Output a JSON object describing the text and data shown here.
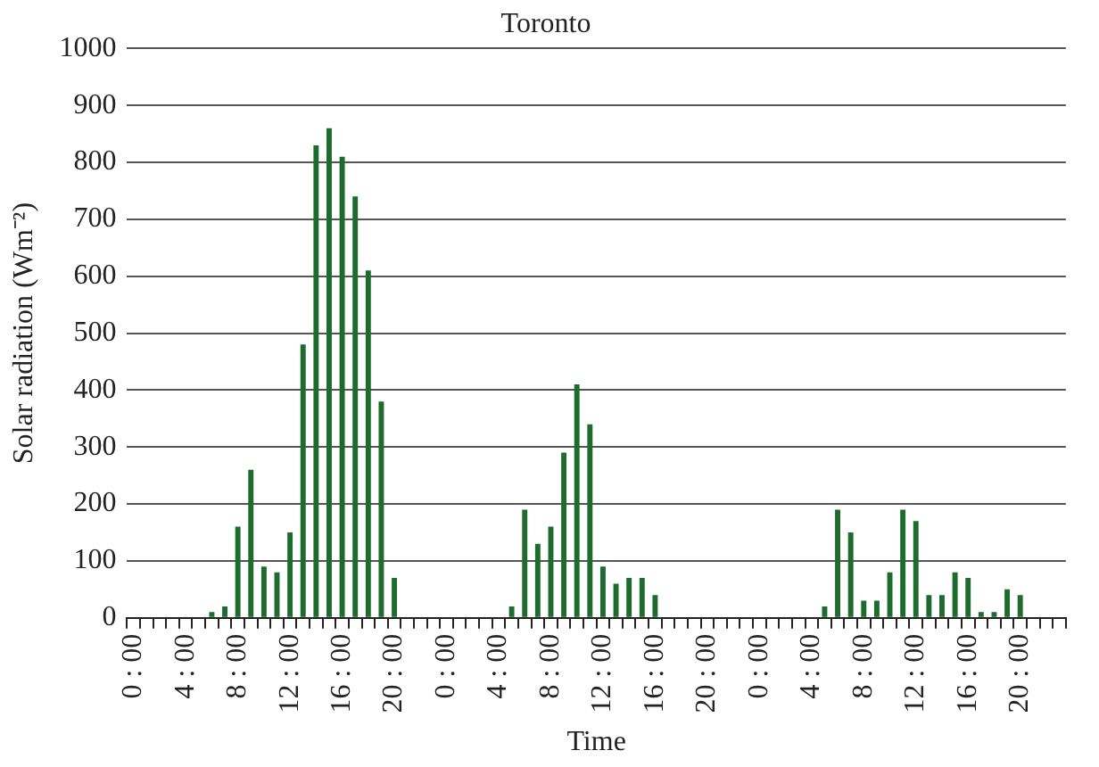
{
  "chart_data": {
    "type": "bar",
    "title": "Toronto",
    "xlabel": "Time",
    "ylabel": "Solar radiation (Wm⁻²)",
    "categories": [
      "0 : 00",
      null,
      null,
      null,
      "4 : 00",
      null,
      null,
      null,
      "8 : 00",
      null,
      null,
      null,
      "12 : 00",
      null,
      null,
      null,
      "16 : 00",
      null,
      null,
      null,
      "20 : 00",
      null,
      null,
      null,
      "0 : 00",
      null,
      null,
      null,
      "4 : 00",
      null,
      null,
      null,
      "8 : 00",
      null,
      null,
      null,
      "12 : 00",
      null,
      null,
      null,
      "16 : 00",
      null,
      null,
      null,
      "20 : 00",
      null,
      null,
      null,
      "0 : 00",
      null,
      null,
      null,
      "4 : 00",
      null,
      null,
      null,
      "8 : 00",
      null,
      null,
      null,
      "12 : 00",
      null,
      null,
      null,
      "16 : 00",
      null,
      null,
      null,
      "20 : 00",
      null,
      null,
      null
    ],
    "values": [
      0,
      0,
      0,
      0,
      0,
      0,
      10,
      20,
      160,
      260,
      90,
      80,
      150,
      480,
      830,
      860,
      810,
      740,
      610,
      380,
      70,
      0,
      0,
      0,
      0,
      0,
      0,
      0,
      0,
      20,
      190,
      130,
      160,
      290,
      410,
      340,
      90,
      60,
      70,
      70,
      40,
      0,
      0,
      0,
      0,
      0,
      0,
      0,
      0,
      0,
      0,
      0,
      0,
      20,
      190,
      150,
      30,
      30,
      80,
      190,
      170,
      40,
      40,
      80,
      70,
      10,
      10,
      50,
      40,
      0,
      0,
      0
    ],
    "color": "#1e6b2e",
    "ylim": [
      0,
      1000
    ],
    "yticks": [
      0,
      100,
      200,
      300,
      400,
      500,
      600,
      700,
      800,
      900,
      1000
    ],
    "grid": "y"
  }
}
